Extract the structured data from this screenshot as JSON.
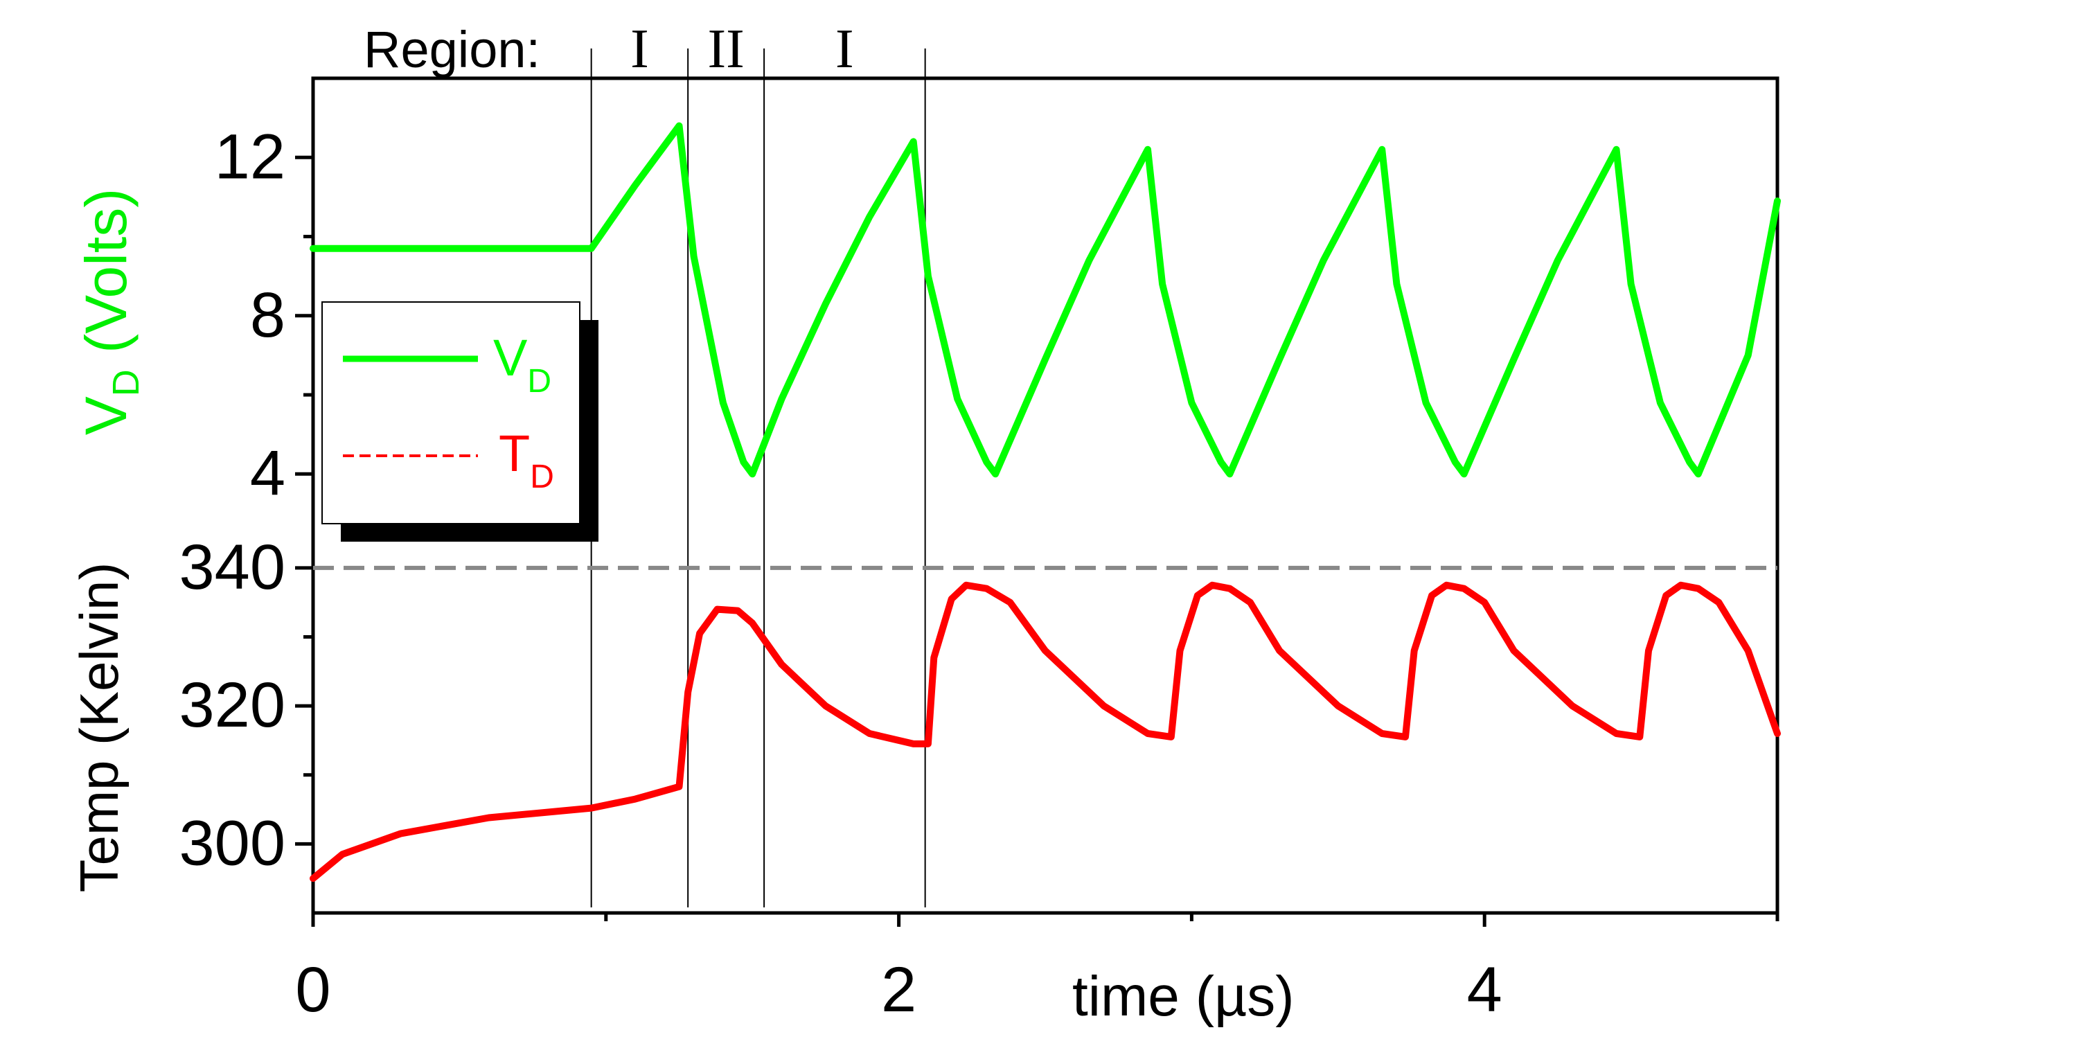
{
  "chart_data": {
    "type": "line",
    "region_label": "Region:",
    "regions": [
      {
        "label": "I",
        "x_start": 0.95,
        "x_end": 1.28
      },
      {
        "label": "II",
        "x_start": 1.28,
        "x_end": 1.54
      },
      {
        "label": "I",
        "x_start": 1.54,
        "x_end": 2.09
      }
    ],
    "region_boundaries": [
      0.95,
      1.28,
      1.54,
      2.09
    ],
    "xlabel": "time (µs)",
    "xlim": [
      0,
      5
    ],
    "x_ticks": [
      0,
      2,
      4
    ],
    "x_minor_ticks": [
      1,
      3,
      5
    ],
    "upper_panel": {
      "ylabel_main": "V",
      "ylabel_sub": "D",
      "ylabel_rest": " (Volts)",
      "ylabel_color": "#00ee00",
      "ylim": [
        2.5,
        14
      ],
      "y_ticks": [
        4,
        8,
        12
      ],
      "series": {
        "name_main": "V",
        "name_sub": "D",
        "color": "#00ff00",
        "points": [
          [
            0,
            9.7
          ],
          [
            0.95,
            9.7
          ],
          [
            1.1,
            11.3
          ],
          [
            1.25,
            12.8
          ],
          [
            1.3,
            9.5
          ],
          [
            1.4,
            5.8
          ],
          [
            1.47,
            4.3
          ],
          [
            1.5,
            4.0
          ],
          [
            1.6,
            5.9
          ],
          [
            1.75,
            8.3
          ],
          [
            1.9,
            10.5
          ],
          [
            2.05,
            12.4
          ],
          [
            2.1,
            9.0
          ],
          [
            2.2,
            5.9
          ],
          [
            2.3,
            4.3
          ],
          [
            2.33,
            4.0
          ],
          [
            2.5,
            6.9
          ],
          [
            2.65,
            9.4
          ],
          [
            2.8,
            11.5
          ],
          [
            2.85,
            12.2
          ],
          [
            2.9,
            8.8
          ],
          [
            3.0,
            5.8
          ],
          [
            3.1,
            4.3
          ],
          [
            3.13,
            4.0
          ],
          [
            3.3,
            6.9
          ],
          [
            3.45,
            9.4
          ],
          [
            3.6,
            11.5
          ],
          [
            3.65,
            12.2
          ],
          [
            3.7,
            8.8
          ],
          [
            3.8,
            5.8
          ],
          [
            3.9,
            4.3
          ],
          [
            3.93,
            4.0
          ],
          [
            4.1,
            6.9
          ],
          [
            4.25,
            9.4
          ],
          [
            4.4,
            11.5
          ],
          [
            4.45,
            12.2
          ],
          [
            4.5,
            8.8
          ],
          [
            4.6,
            5.8
          ],
          [
            4.7,
            4.3
          ],
          [
            4.73,
            4.0
          ],
          [
            4.9,
            7.0
          ],
          [
            5.0,
            10.9
          ]
        ]
      }
    },
    "lower_panel": {
      "ylabel": "Temp (Kelvin)",
      "ylabel_color": "#ff0000",
      "ylim": [
        290,
        344
      ],
      "y_ticks": [
        300,
        320,
        340
      ],
      "reference_line": {
        "y": 340,
        "color": "#888888",
        "style": "dashed"
      },
      "series": {
        "name_main": "T",
        "name_sub": "D",
        "color": "#ff0000",
        "points": [
          [
            0,
            295
          ],
          [
            0.1,
            298.5
          ],
          [
            0.3,
            301.5
          ],
          [
            0.6,
            303.8
          ],
          [
            0.95,
            305.2
          ],
          [
            1.1,
            306.5
          ],
          [
            1.25,
            308.3
          ],
          [
            1.28,
            322
          ],
          [
            1.32,
            330.5
          ],
          [
            1.38,
            334
          ],
          [
            1.45,
            333.8
          ],
          [
            1.5,
            332
          ],
          [
            1.6,
            326
          ],
          [
            1.75,
            320
          ],
          [
            1.9,
            316
          ],
          [
            2.05,
            314.5
          ],
          [
            2.1,
            314.5
          ],
          [
            2.12,
            327
          ],
          [
            2.18,
            335.5
          ],
          [
            2.23,
            337.5
          ],
          [
            2.3,
            337
          ],
          [
            2.38,
            335
          ],
          [
            2.5,
            328
          ],
          [
            2.7,
            320
          ],
          [
            2.85,
            316
          ],
          [
            2.93,
            315.5
          ],
          [
            2.96,
            328
          ],
          [
            3.02,
            336
          ],
          [
            3.07,
            337.5
          ],
          [
            3.13,
            337
          ],
          [
            3.2,
            335
          ],
          [
            3.3,
            328
          ],
          [
            3.5,
            320
          ],
          [
            3.65,
            316
          ],
          [
            3.73,
            315.5
          ],
          [
            3.76,
            328
          ],
          [
            3.82,
            336
          ],
          [
            3.87,
            337.5
          ],
          [
            3.93,
            337
          ],
          [
            4.0,
            335
          ],
          [
            4.1,
            328
          ],
          [
            4.3,
            320
          ],
          [
            4.45,
            316
          ],
          [
            4.53,
            315.5
          ],
          [
            4.56,
            328
          ],
          [
            4.62,
            336
          ],
          [
            4.67,
            337.5
          ],
          [
            4.73,
            337
          ],
          [
            4.8,
            335
          ],
          [
            4.9,
            328
          ],
          [
            5.0,
            316
          ]
        ]
      }
    },
    "legend": {
      "placement": "upper-left",
      "entries": [
        {
          "name_main": "V",
          "name_sub": "D",
          "color": "#00ff00",
          "style": "solid"
        },
        {
          "name_main": "T",
          "name_sub": "D",
          "color": "#ff0000",
          "style": "dashed"
        }
      ]
    },
    "grid": false
  }
}
